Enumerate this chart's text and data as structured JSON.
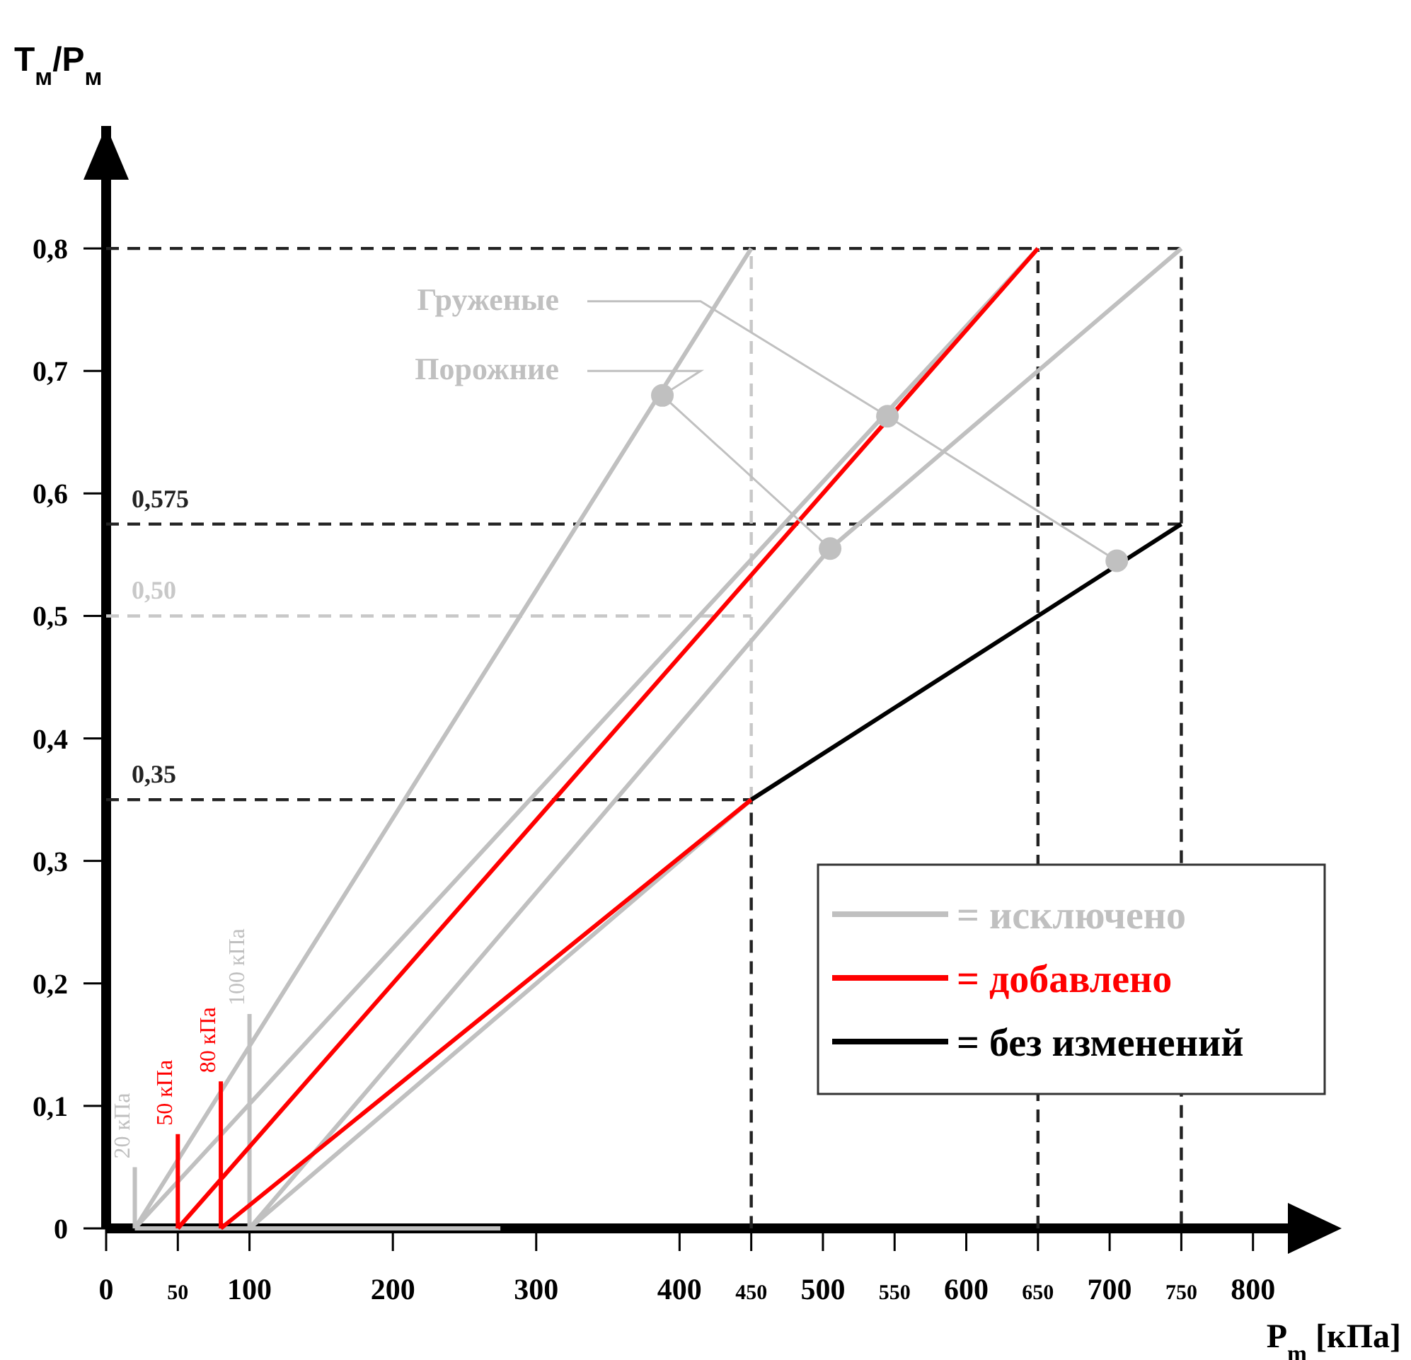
{
  "chart_data": {
    "type": "line",
    "ylabel": "T$_{м}$/P$_{м}$",
    "xlabel": "P$_{m}$ [кПа]",
    "xlim": [
      0,
      850
    ],
    "ylim": [
      0,
      0.9
    ],
    "xticks": [
      0,
      50,
      100,
      200,
      300,
      400,
      450,
      500,
      550,
      600,
      650,
      700,
      750,
      800
    ],
    "yticks": [
      {
        "value": 0,
        "label": "0"
      },
      {
        "value": 0.1,
        "label": "0,1"
      },
      {
        "value": 0.2,
        "label": "0,2"
      },
      {
        "value": 0.3,
        "label": "0,3"
      },
      {
        "value": 0.4,
        "label": "0,4"
      },
      {
        "value": 0.5,
        "label": "0,5"
      },
      {
        "value": 0.6,
        "label": "0,6"
      },
      {
        "value": 0.7,
        "label": "0,7"
      },
      {
        "value": 0.8,
        "label": "0,8"
      }
    ],
    "legend": "bottom right",
    "series": [
      {
        "line_style": "dashed",
        "color": "#222222",
        "x": [
          0,
          750,
          750
        ],
        "values": [
          0.8,
          0.8,
          0
        ]
      },
      {
        "line_style": "dashed",
        "color": "#222222",
        "x": [
          0,
          750
        ],
        "values": [
          0.575,
          0.575
        ]
      },
      {
        "line_style": "dashed",
        "color": "#222222",
        "x": [
          0,
          450,
          450
        ],
        "values": [
          0.35,
          0.35,
          0
        ]
      },
      {
        "line_style": "dashed",
        "color": "#222222",
        "x": [
          650,
          650
        ],
        "values": [
          0,
          0.8
        ]
      },
      {
        "line_style": "dashed",
        "color": "#c8c8c8",
        "x": [
          0,
          450
        ],
        "values": [
          0.5,
          0.5
        ]
      },
      {
        "line_style": "dashed",
        "color": "#c8c8c8",
        "x": [
          450,
          450
        ],
        "values": [
          0.35,
          0.8
        ]
      },
      {
        "name": "= исключено",
        "color": "#c0c0c0",
        "x": [
          20,
          450,
          null,
          20,
          650,
          null,
          100,
          505,
          750,
          null,
          100,
          450,
          null,
          20,
          275,
          null,
          20,
          20,
          null,
          100,
          100
        ],
        "values": [
          0,
          0.8,
          null,
          0,
          0.8,
          null,
          0,
          0.555,
          0.8,
          null,
          0,
          0.35,
          null,
          0,
          0,
          null,
          0,
          0.05,
          null,
          0,
          0.175
        ]
      },
      {
        "name": "= добавлено",
        "color": "#ff0000",
        "x": [
          50,
          650,
          null,
          80,
          450,
          null,
          50,
          50,
          null,
          80,
          80
        ],
        "values": [
          0,
          0.8,
          null,
          0,
          0.35,
          null,
          0,
          0.077,
          null,
          0,
          0.12
        ]
      },
      {
        "name": "= без изменений",
        "color": "#000000",
        "x": [
          450,
          750
        ],
        "values": [
          0.35,
          0.575
        ]
      },
      {
        "type": "scatter",
        "name": "Груженые",
        "color": "#c0c0c0",
        "x": [
          545,
          705
        ],
        "values": [
          0.663,
          0.545
        ]
      },
      {
        "type": "scatter",
        "name": "Порожние",
        "color": "#c0c0c0",
        "x": [
          388,
          505
        ],
        "values": [
          0.68,
          0.555
        ]
      }
    ],
    "annotations": [
      {
        "text": "0,575",
        "x": 0,
        "y": 0.575
      },
      {
        "text": "0,50",
        "x": 0,
        "y": 0.5
      },
      {
        "text": "0,35",
        "x": 0,
        "y": 0.35
      },
      {
        "text": "20 кПа",
        "x": 20,
        "y": 0.05
      },
      {
        "text": "50 кПа",
        "x": 50,
        "y": 0.077
      },
      {
        "text": "80 кПа",
        "x": 80,
        "y": 0.12
      },
      {
        "text": "100 кПа",
        "x": 100,
        "y": 0.175
      }
    ]
  }
}
